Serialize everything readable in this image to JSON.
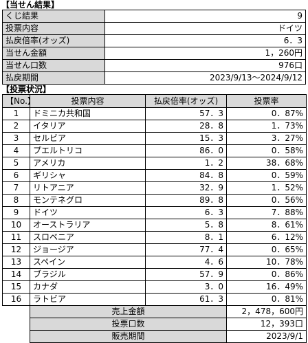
{
  "summary": {
    "title": "【当せん結果】",
    "rows": [
      {
        "label": "くじ結果",
        "value": "9"
      },
      {
        "label": "投票内容",
        "value": "ドイツ"
      },
      {
        "label": "払戻倍率(オッズ)",
        "value": "6．3"
      },
      {
        "label": "当せん金額",
        "value": "1，260円"
      },
      {
        "label": "当せん口数",
        "value": "976口"
      },
      {
        "label": "払戻期間",
        "value": "2023/9/13～2024/9/12"
      }
    ]
  },
  "detail": {
    "title": "【投票状況】",
    "headers": [
      "【No.】",
      "投票内容",
      "払戻倍率(オッズ)",
      "投票率"
    ],
    "rows": [
      {
        "no": "1",
        "name": "ドミニカ共和国",
        "odds": "57．3",
        "rate": "0．87%"
      },
      {
        "no": "2",
        "name": "イタリア",
        "odds": "28．8",
        "rate": "1．73%"
      },
      {
        "no": "3",
        "name": "セルビア",
        "odds": "15．3",
        "rate": "3．27%"
      },
      {
        "no": "4",
        "name": "プエルトリコ",
        "odds": "86．0",
        "rate": "0．58%"
      },
      {
        "no": "5",
        "name": "アメリカ",
        "odds": "1．2",
        "rate": "38．68%"
      },
      {
        "no": "6",
        "name": "ギリシャ",
        "odds": "84．8",
        "rate": "0．59%"
      },
      {
        "no": "7",
        "name": "リトアニア",
        "odds": "32．9",
        "rate": "1．52%"
      },
      {
        "no": "8",
        "name": "モンテネグロ",
        "odds": "89．8",
        "rate": "0．56%"
      },
      {
        "no": "9",
        "name": "ドイツ",
        "odds": "6．3",
        "rate": "7．88%"
      },
      {
        "no": "10",
        "name": "オーストラリア",
        "odds": "5．8",
        "rate": "8．61%"
      },
      {
        "no": "11",
        "name": "スロベニア",
        "odds": "8．1",
        "rate": "6．12%"
      },
      {
        "no": "12",
        "name": "ジョージア",
        "odds": "77．4",
        "rate": "0．65%"
      },
      {
        "no": "13",
        "name": "スペイン",
        "odds": "4．6",
        "rate": "10．78%"
      },
      {
        "no": "14",
        "name": "ブラジル",
        "odds": "57．9",
        "rate": "0．86%"
      },
      {
        "no": "15",
        "name": "カナダ",
        "odds": "3．0",
        "rate": "16．49%"
      },
      {
        "no": "16",
        "name": "ラトビア",
        "odds": "61．3",
        "rate": "0．81%"
      }
    ],
    "footer": [
      {
        "label": "売上金額",
        "value": "2，478，600円"
      },
      {
        "label": "投票口数",
        "value": "12，393口"
      },
      {
        "label": "販売期間",
        "value": "2023/9/1"
      }
    ]
  }
}
